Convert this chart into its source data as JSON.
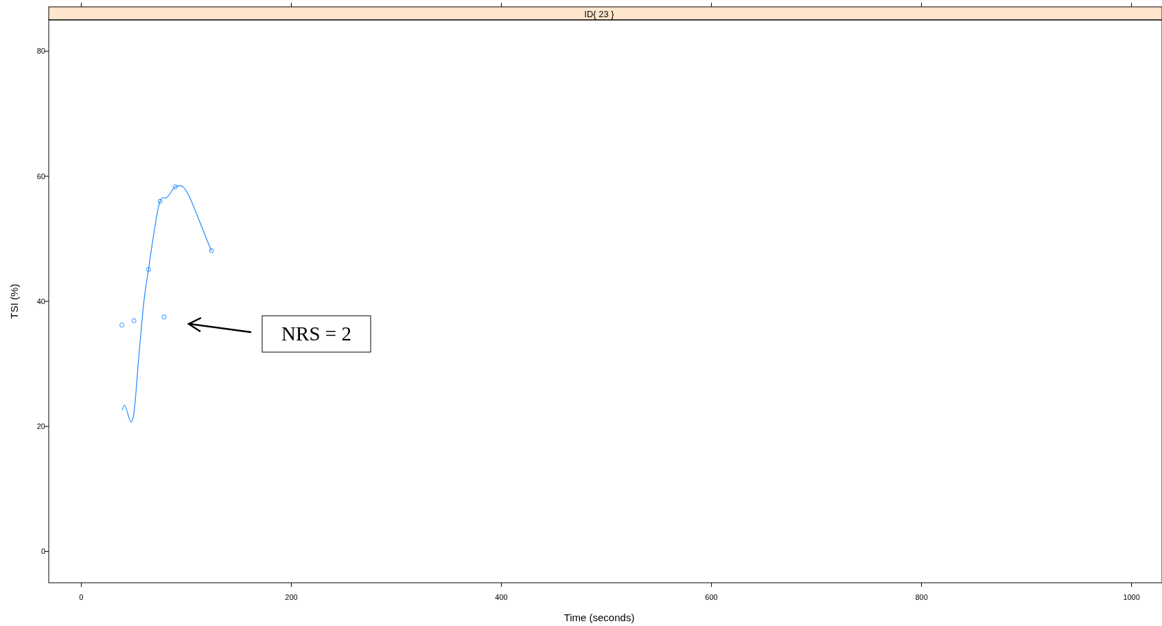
{
  "chart_data": {
    "type": "scatter",
    "title": "ID{ 23 }",
    "xlabel": "Time (seconds)",
    "ylabel": "TSI (%)",
    "xlim": [
      -31,
      1029
    ],
    "ylim": [
      -5,
      85
    ],
    "xticks": [
      0,
      200,
      400,
      600,
      800,
      1000
    ],
    "yticks": [
      0,
      20,
      40,
      60,
      80
    ],
    "grid": false,
    "series": [
      {
        "marker": "circle",
        "color": "#1e88ff",
        "x": [
          38.6,
          50.2,
          64,
          75,
          78.9,
          89.5,
          124
        ],
        "values": [
          36.2,
          36.9,
          45.1,
          56,
          37.5,
          58.3,
          48.1
        ]
      },
      {
        "type": "line",
        "marker": "none",
        "line_style": "solid",
        "color": "#1e88ff",
        "x": [
          39,
          41,
          47.5,
          49.7,
          55,
          59.5,
          64,
          68.2,
          75,
          78,
          80.2,
          89.5,
          93.9,
          97.6,
          103,
          108.5,
          115,
          121.6,
          124
        ],
        "values": [
          22.6,
          23.4,
          20.7,
          21.7,
          31.6,
          39.8,
          45.1,
          49.9,
          56,
          56.6,
          56.5,
          58.3,
          58.5,
          58.2,
          56.7,
          54.5,
          51.8,
          49,
          48.1
        ]
      }
    ],
    "annotations": [
      "NRS = 2"
    ]
  }
}
